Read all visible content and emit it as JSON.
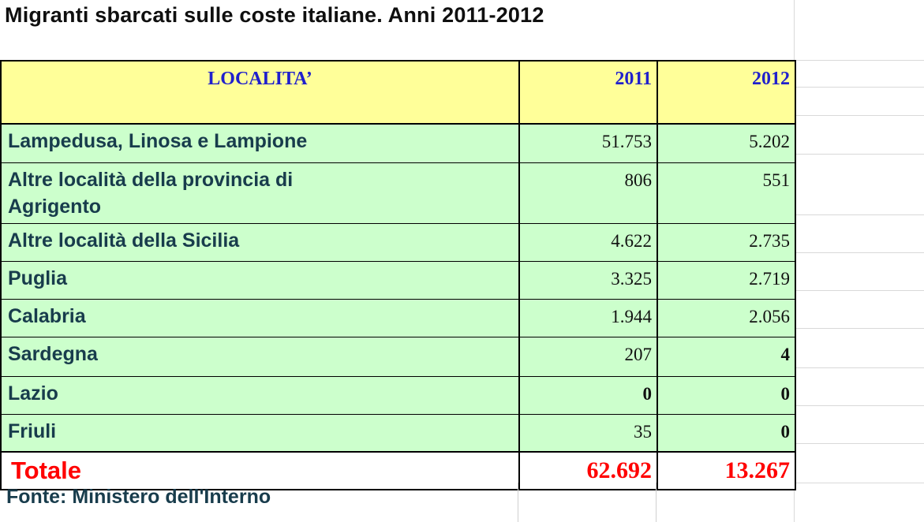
{
  "title": "Migranti sbarcati sulle coste italiane. Anni 2011-2012",
  "table": {
    "headers": [
      "LOCALITA’",
      "2011",
      "2012"
    ],
    "rows": [
      {
        "label_lines": [
          "Lampedusa, Linosa e Lampione"
        ],
        "v2011": "51.753",
        "v2012": "5.202"
      },
      {
        "label_lines": [
          "Altre località della provincia di",
          "Agrigento"
        ],
        "v2011": "806",
        "v2012": "551"
      },
      {
        "label_lines": [
          "Altre località della Sicilia"
        ],
        "v2011": "4.622",
        "v2012": "2.735"
      },
      {
        "label_lines": [
          "Puglia"
        ],
        "v2011": "3.325",
        "v2012": "2.719"
      },
      {
        "label_lines": [
          "Calabria"
        ],
        "v2011": "1.944",
        "v2012": "2.056"
      },
      {
        "label_lines": [
          "Sardegna"
        ],
        "v2011": "207",
        "v2012": "4"
      },
      {
        "label_lines": [
          "Lazio"
        ],
        "v2011": "0",
        "v2012": "0"
      },
      {
        "label_lines": [
          "Friuli"
        ],
        "v2011": "35",
        "v2012": "0"
      }
    ],
    "total": {
      "label": "Totale",
      "v2011": "62.692",
      "v2012": "13.267"
    }
  },
  "source": "Fonte: Ministero dell'Interno",
  "colors": {
    "header_bg": "#ffff99",
    "row_bg": "#ccffcc",
    "header_text": "#2020cc",
    "label_text": "#183c4c",
    "total_text": "#ff0000"
  }
}
